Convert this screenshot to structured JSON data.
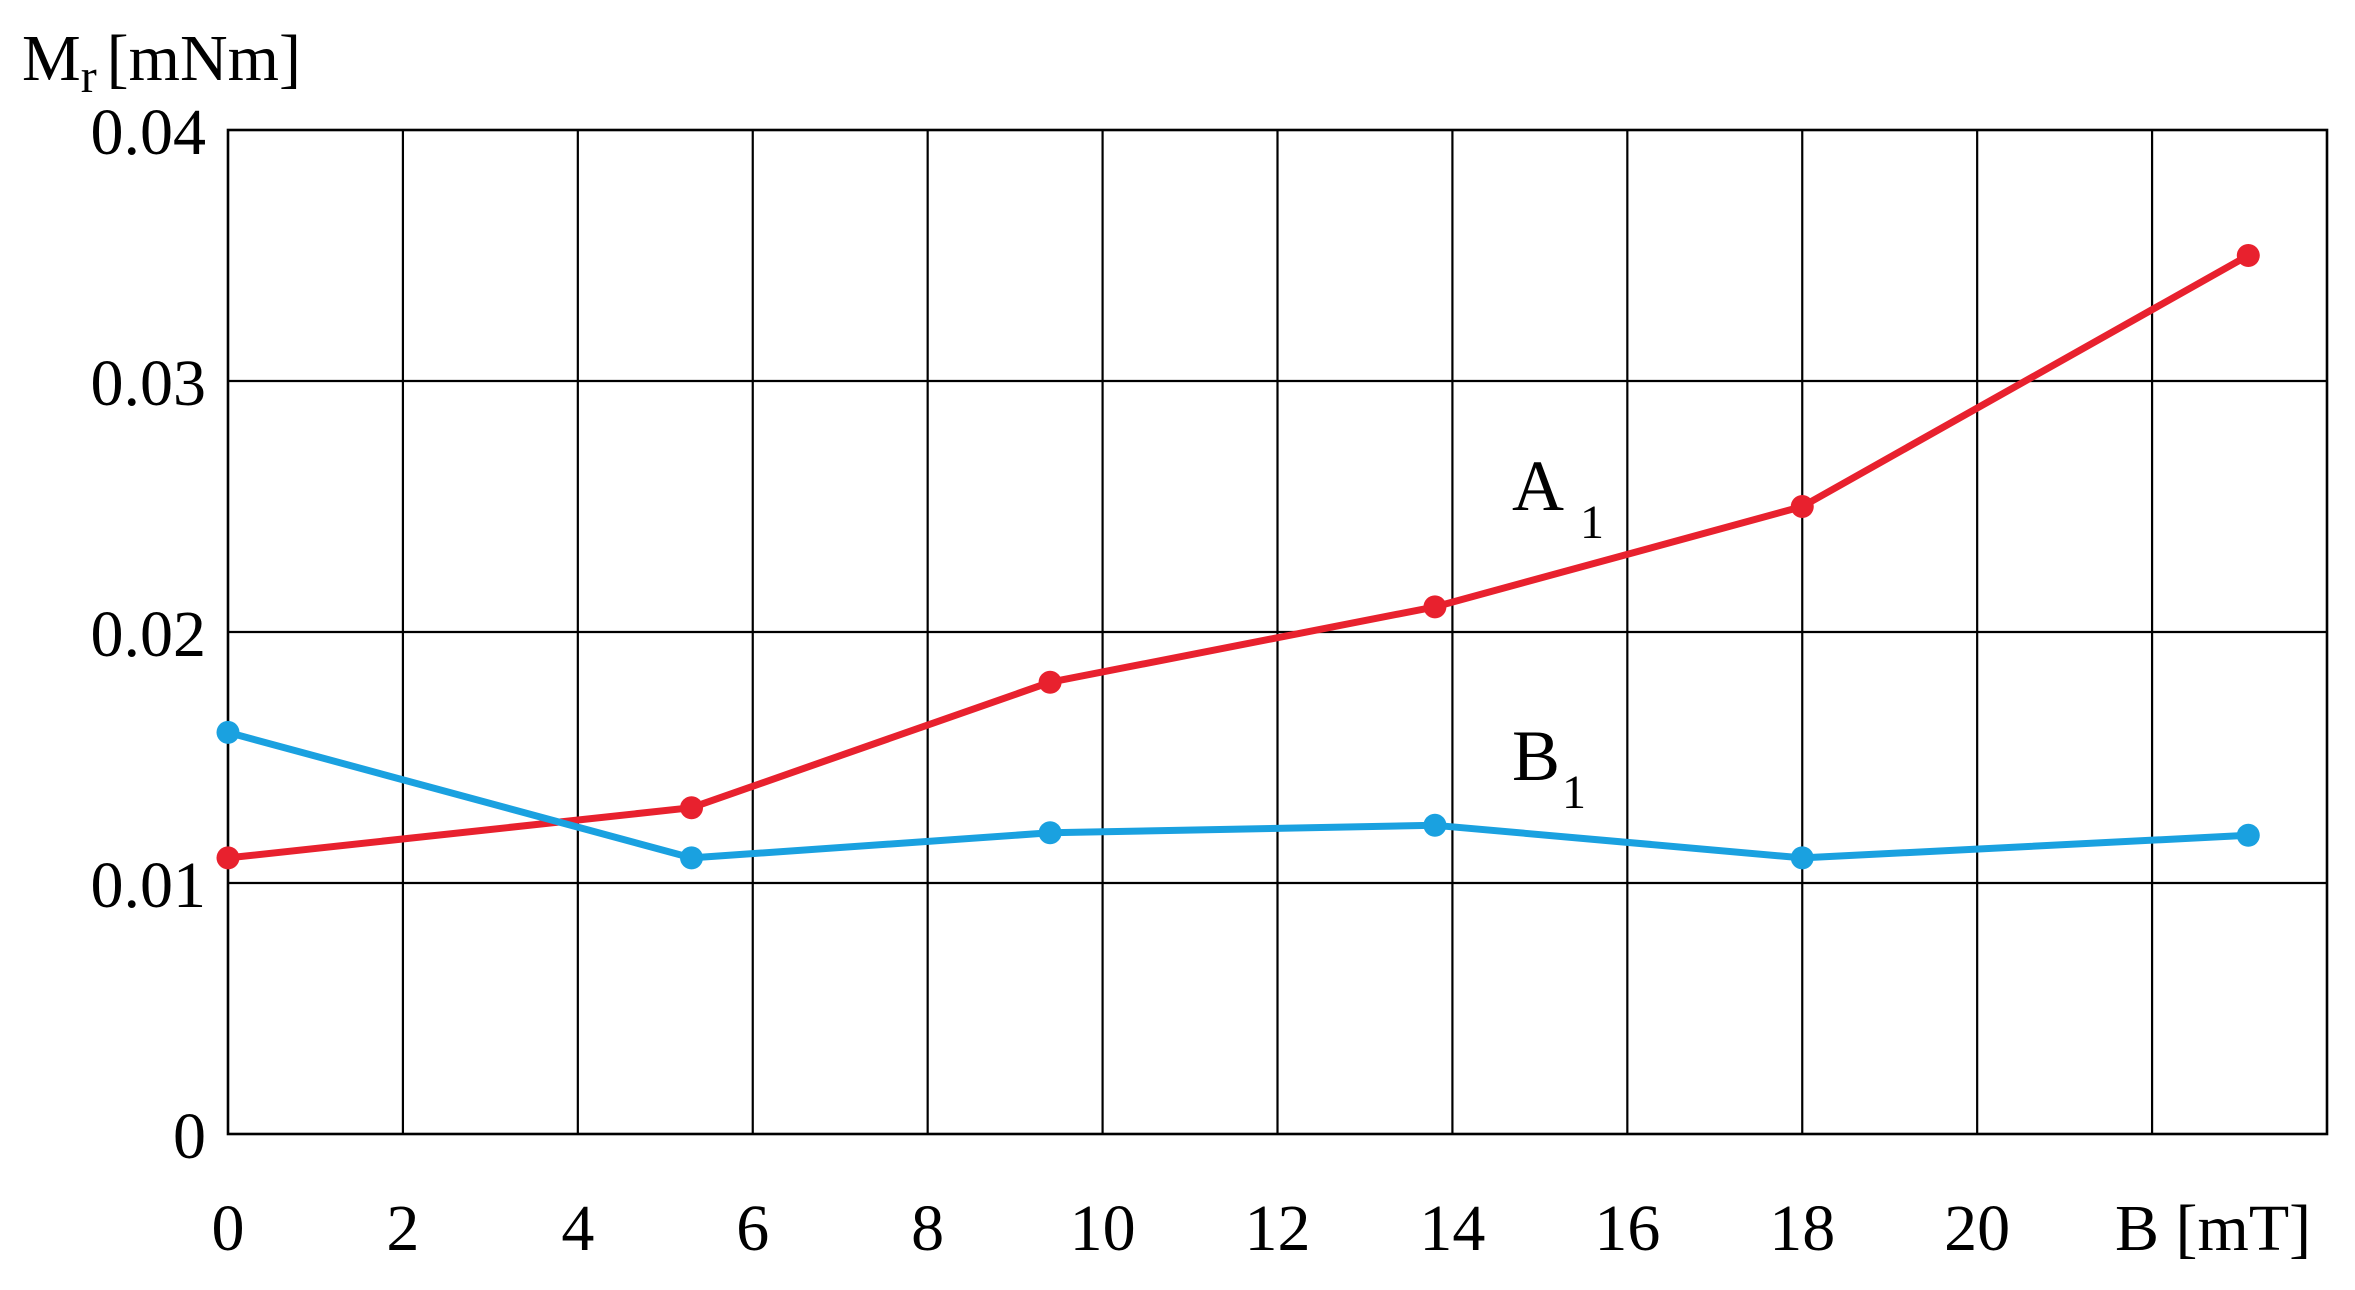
{
  "chart_data": {
    "type": "line",
    "ylabel": {
      "main": "M",
      "sub": "r",
      "unit": "[mNm]"
    },
    "xlabel": "B [mT]",
    "xlim": [
      0,
      24
    ],
    "ylim": [
      0,
      0.04
    ],
    "x_ticks": [
      "0",
      "2",
      "4",
      "6",
      "8",
      "10",
      "12",
      "14",
      "16",
      "18",
      "20"
    ],
    "y_ticks": [
      "0",
      "0.01",
      "0.02",
      "0.03",
      "0.04"
    ],
    "grid": true,
    "series": [
      {
        "name": "A",
        "name_sub": "1",
        "color": "#e8212e",
        "x": [
          0,
          5.3,
          9.4,
          13.8,
          18,
          23.1
        ],
        "y": [
          0.011,
          0.013,
          0.018,
          0.021,
          0.025,
          0.035
        ]
      },
      {
        "name": "B",
        "name_sub": "1",
        "color": "#1aa1e0",
        "x": [
          0,
          5.3,
          9.4,
          13.8,
          18,
          23.1
        ],
        "y": [
          0.016,
          0.011,
          0.012,
          0.0123,
          0.011,
          0.0119
        ]
      }
    ]
  }
}
